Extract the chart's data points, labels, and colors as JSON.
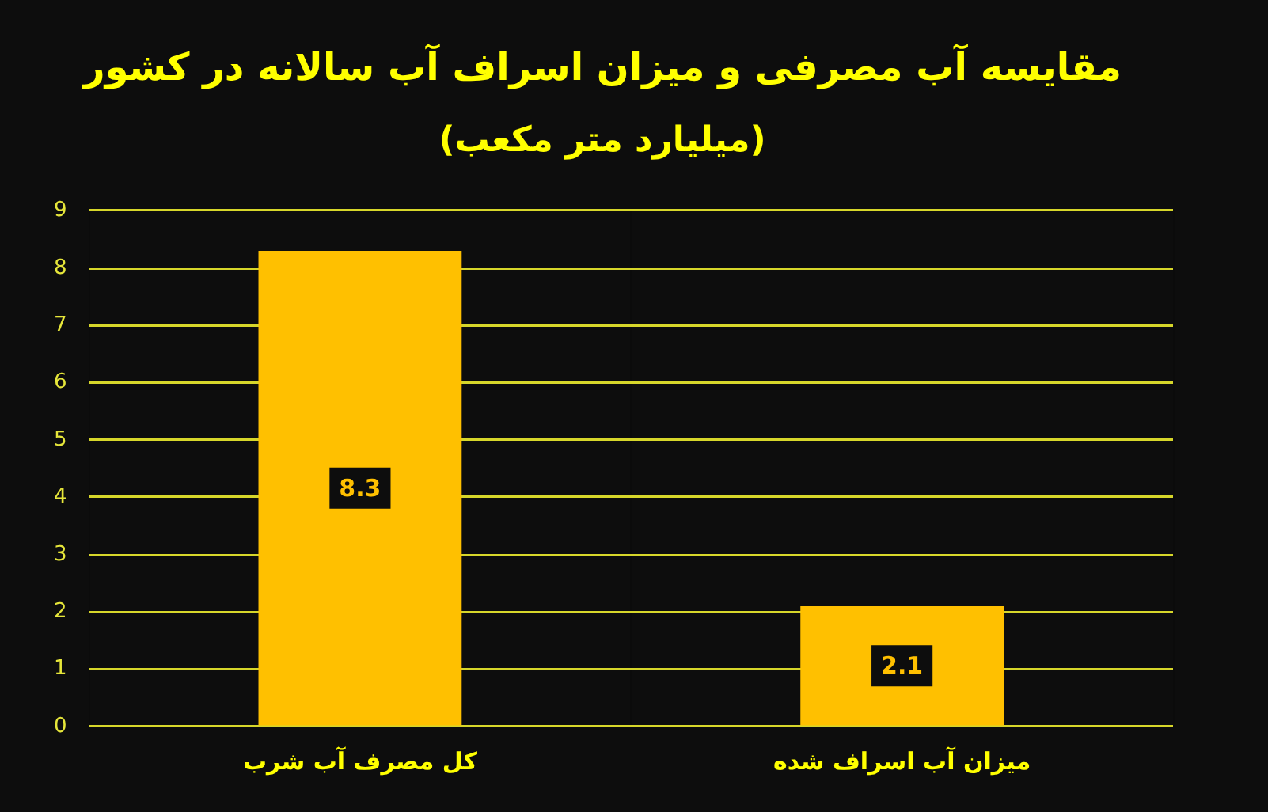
{
  "chart_data": {
    "type": "bar",
    "title": "مقایسه آب مصرفی و میزان اسراف آب سالانه در کشور",
    "subtitle": "(میلیارد متر مکعب)",
    "categories": [
      "کل مصرف آب شرب",
      "میزان آب اسراف شده"
    ],
    "values": [
      8.3,
      2.1
    ],
    "color": "#ffc000",
    "ylim": [
      0,
      9
    ],
    "yticks": [
      0,
      1,
      2,
      3,
      4,
      5,
      6,
      7,
      8,
      9
    ],
    "grid": true,
    "data_labels": true
  }
}
